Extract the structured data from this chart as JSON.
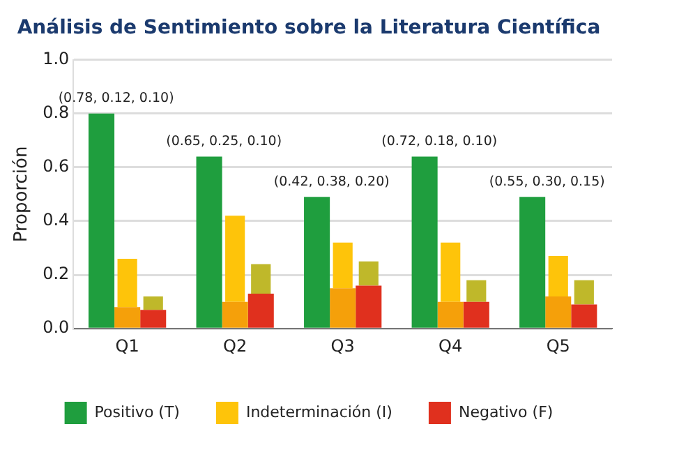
{
  "chart_data": {
    "type": "bar",
    "title": "Análisis de Sentimiento sobre la Literatura Científica",
    "ylabel": "Proporción",
    "categories": [
      "Q1",
      "Q2",
      "Q3",
      "Q4",
      "Q5"
    ],
    "series": [
      {
        "name": "Positivo (T)",
        "color": "#1f9e3e",
        "values": [
          0.8,
          0.64,
          0.49,
          0.64,
          0.49
        ]
      },
      {
        "color": "#f5a00a",
        "values": [
          0.08,
          0.1,
          0.15,
          0.1,
          0.12
        ]
      },
      {
        "name": "Indeterminación (I)",
        "color": "#fec40a",
        "values": [
          0.18,
          0.32,
          0.17,
          0.22,
          0.15
        ],
        "base": [
          0.08,
          0.1,
          0.15,
          0.1,
          0.12
        ]
      },
      {
        "name": "Negativo (F)",
        "color": "#e0301e",
        "values": [
          0.07,
          0.13,
          0.16,
          0.1,
          0.09
        ]
      },
      {
        "color": "#bfb82a",
        "values": [
          0.05,
          0.11,
          0.09,
          0.08,
          0.09
        ],
        "base": [
          0.07,
          0.13,
          0.16,
          0.1,
          0.09
        ]
      }
    ],
    "ylim": [
      0,
      1
    ],
    "yticks": [
      {
        "value": 0,
        "label": "0.0"
      },
      {
        "value": 0.2,
        "label": "0.2"
      },
      {
        "value": 0.4,
        "label": "0.4"
      },
      {
        "value": 0.6,
        "label": "0.6"
      },
      {
        "value": 0.8,
        "label": "0.8"
      },
      {
        "value": 1,
        "label": "1.0"
      }
    ],
    "grid": "y",
    "legend": "bottom",
    "annotations": [
      "(0.78, 0.12, 0.10)",
      "(0.65, 0.25, 0.10)",
      "(0.42, 0.38, 0.20)",
      "(0.72, 0.18, 0.10)",
      "(0.55, 0.30, 0.15)"
    ]
  }
}
